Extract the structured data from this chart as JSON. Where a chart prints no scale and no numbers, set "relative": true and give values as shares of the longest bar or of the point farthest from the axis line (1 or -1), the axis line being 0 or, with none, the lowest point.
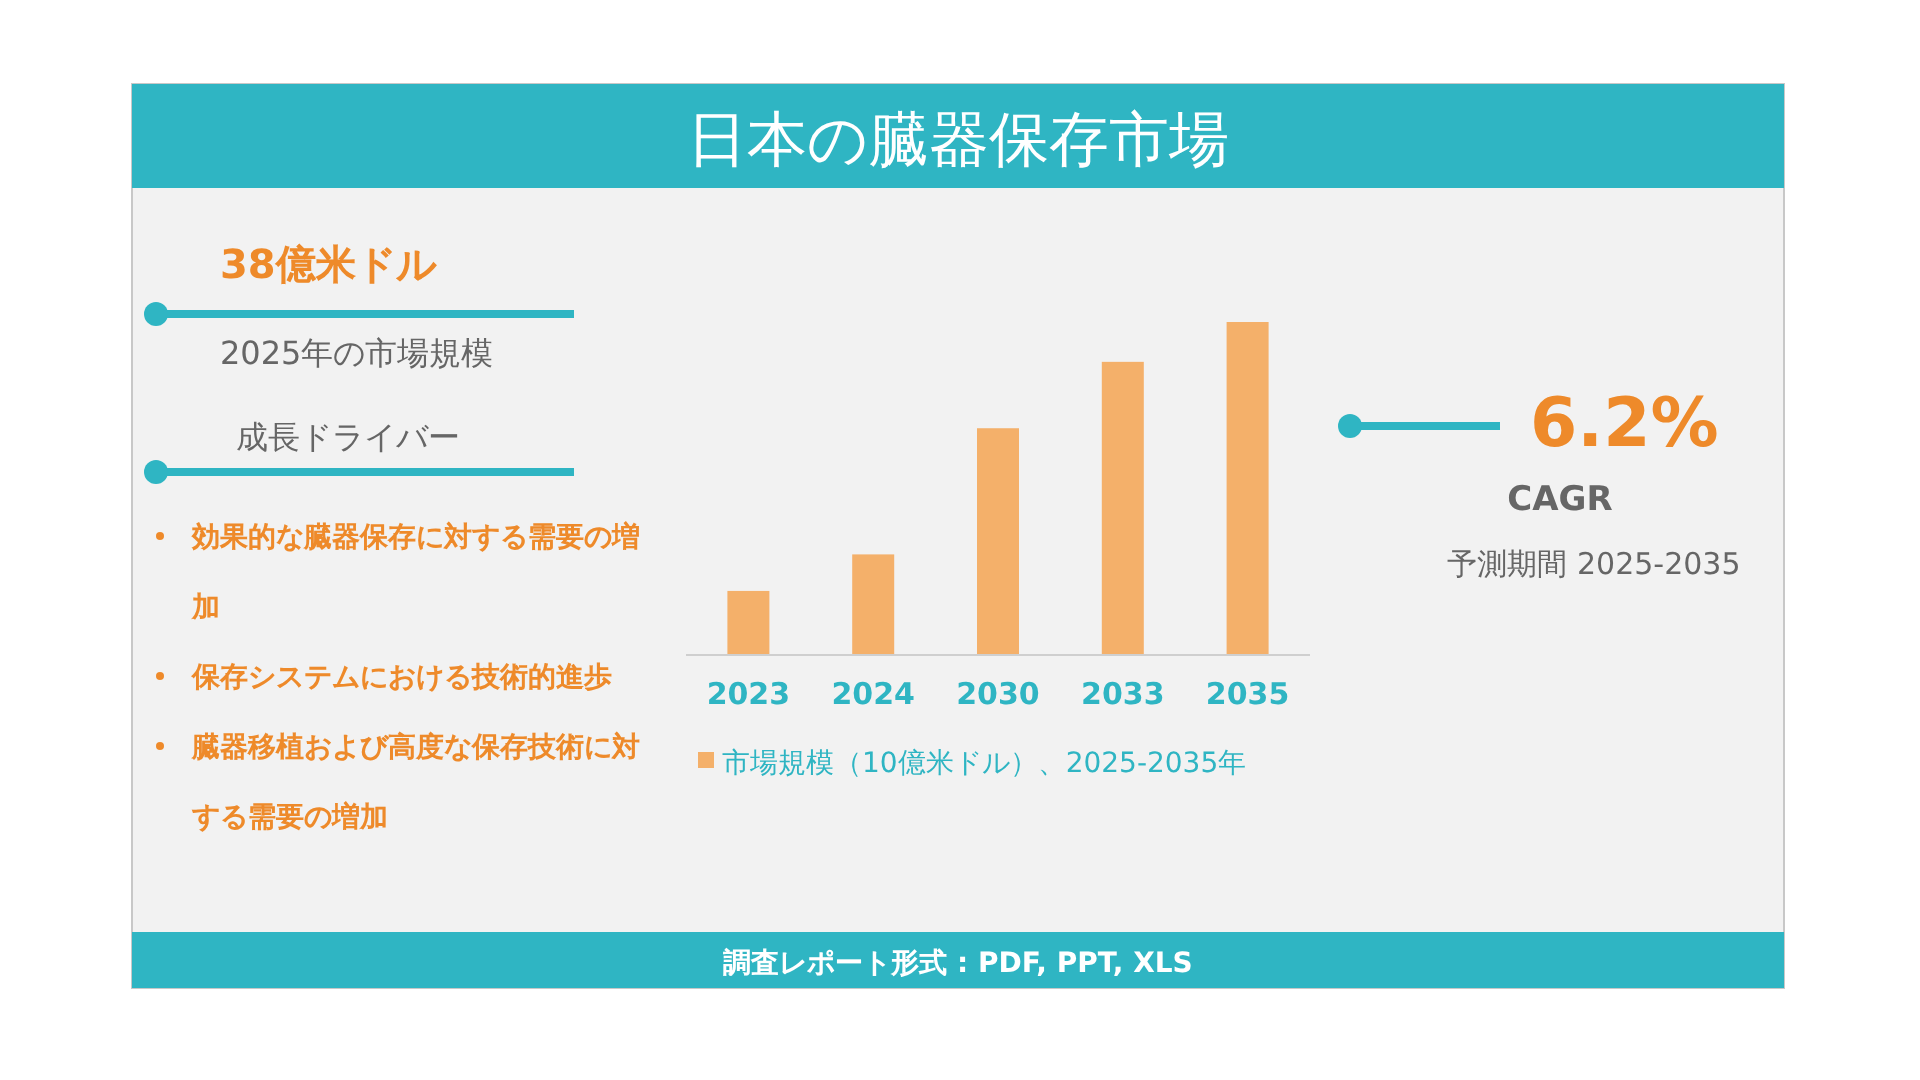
{
  "chart_data": {
    "type": "bar",
    "title": "日本の臓器保存市場",
    "relative": true,
    "legend": "bottom",
    "categories": [
      "2023",
      "2024",
      "2030",
      "2033",
      "2035"
    ],
    "series": [
      {
        "name": "市場規模（10億米ドル）、2025-2035年",
        "color": "#f4b06a",
        "values": [
          0.19,
          0.3,
          0.68,
          0.88,
          1
        ]
      }
    ],
    "annotations": [
      "38億米ドル",
      "2025年の市場規模",
      "成長ドライバー",
      "効果的な臓器保存に対する需要の増加",
      "保存システムにおける技術的進歩",
      "臓器移植および高度な保存技術に対する需要の増加",
      "6.2%",
      "CAGR",
      "予測期間 2025-2035",
      "調査レポート形式 : PDF, PPT, XLS"
    ]
  }
}
